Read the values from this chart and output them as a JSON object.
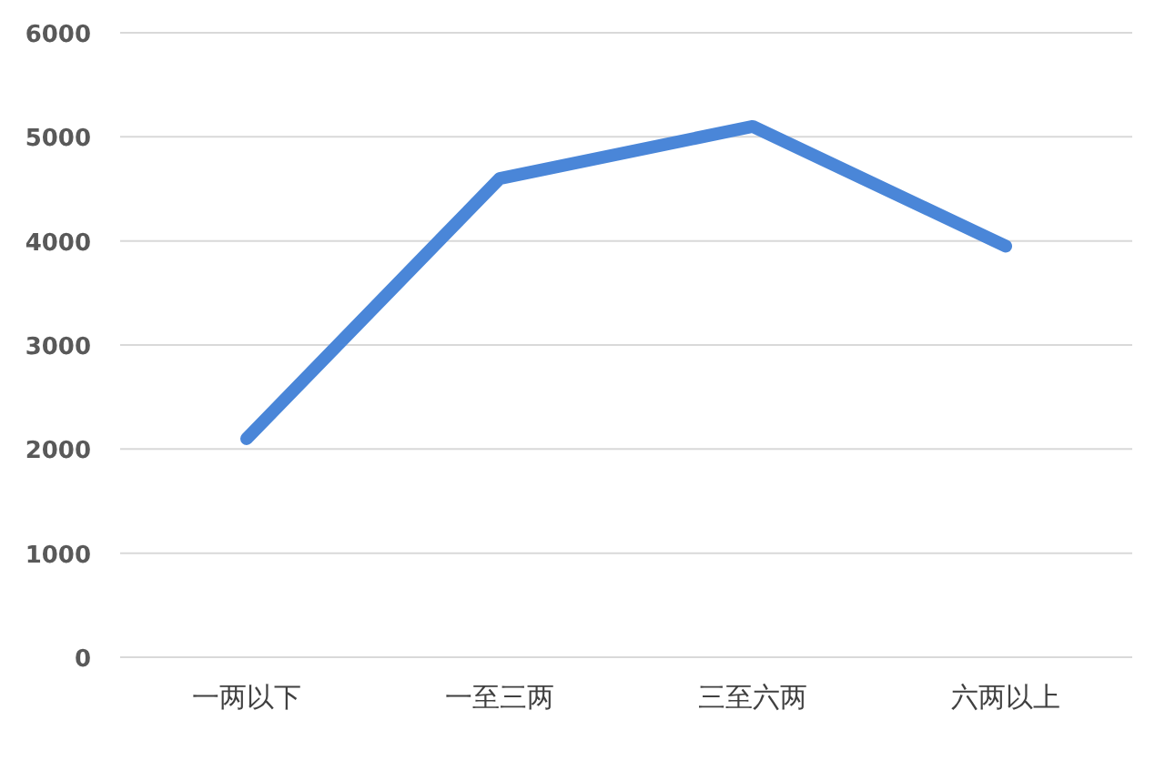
{
  "chart_data": {
    "type": "line",
    "categories": [
      "一两以下",
      "一至三两",
      "三至六两",
      "六两以上"
    ],
    "series": [
      {
        "color": "#4a86d8",
        "values": [
          2100,
          4600,
          5100,
          3950
        ]
      }
    ],
    "ylim": [
      0,
      6000
    ],
    "yticks": [
      0,
      1000,
      2000,
      3000,
      4000,
      5000,
      6000
    ],
    "grid": "y",
    "marker": "none",
    "line_style": "solid"
  }
}
